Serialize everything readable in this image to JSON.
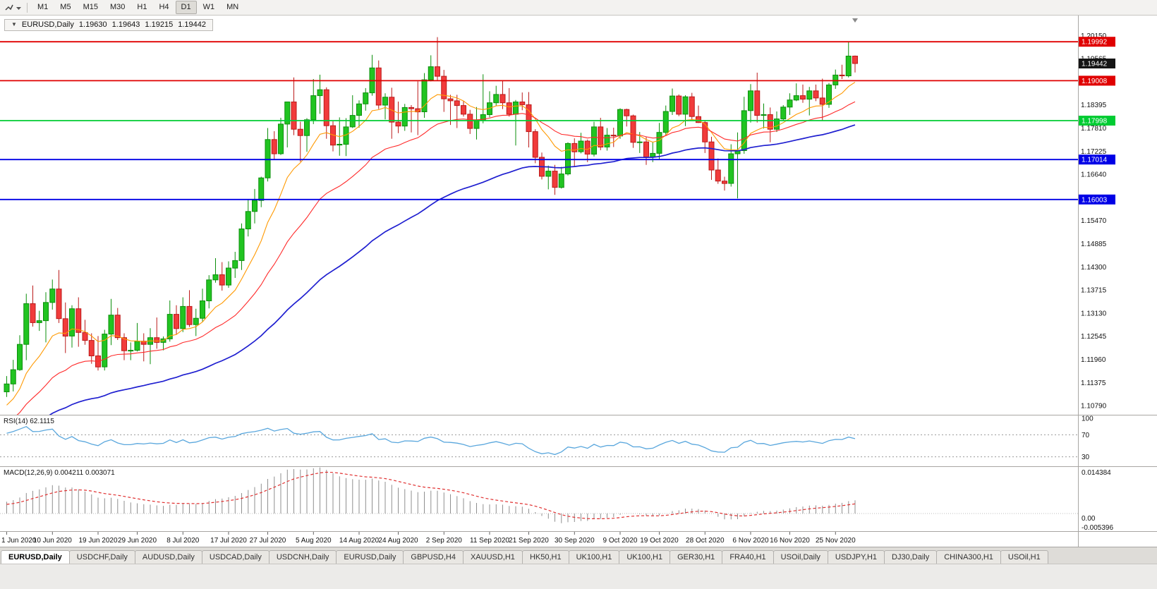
{
  "window": {
    "toolbar": {
      "timeframes": [
        "M1",
        "M5",
        "M15",
        "M30",
        "H1",
        "H4",
        "D1",
        "W1",
        "MN"
      ],
      "active": "D1"
    },
    "tabs": {
      "items": [
        "EURUSD,Daily",
        "USDCHF,Daily",
        "AUDUSD,Daily",
        "USDCAD,Daily",
        "USDCNH,Daily",
        "EURUSD,Daily",
        "GBPUSD,H4",
        "XAUUSD,H1",
        "HK50,H1",
        "UK100,H1",
        "UK100,H1",
        "GER30,H1",
        "FRA40,H1",
        "USOil,Daily",
        "USDJPY,H1",
        "DJ30,Daily",
        "CHINA300,H1",
        "USOil,H1"
      ],
      "active_index": 0
    }
  },
  "chart": {
    "symbol_period": "EURUSD,Daily",
    "ohlc": {
      "open": "1.19630",
      "high": "1.19643",
      "low": "1.19215",
      "close": "1.19442"
    }
  },
  "indicators": {
    "rsi": {
      "label": "RSI(14) 62.1115"
    },
    "macd": {
      "label": "MACD(12,26,9) 0.004211 0.003071"
    }
  },
  "chart_data": {
    "type": "candlestick",
    "symbol": "EURUSD",
    "timeframe": "Daily",
    "price_axis": {
      "max": 1.2062,
      "min": 1.1056,
      "tick_labels": [
        "1.20150",
        "1.19565",
        "1.18395",
        "1.17810",
        "1.17225",
        "1.16640",
        "1.15470",
        "1.14885",
        "1.14300",
        "1.13715",
        "1.13130",
        "1.12545",
        "1.11960",
        "1.11375",
        "1.10790"
      ]
    },
    "current_price": {
      "value": 1.19442,
      "label": "1.19442",
      "color": "#151515"
    },
    "levels": [
      {
        "price": 1.19992,
        "label": "1.19992",
        "color": "#e00000"
      },
      {
        "price": 1.19008,
        "label": "1.19008",
        "color": "#e00000"
      },
      {
        "price": 1.17998,
        "label": "1.17998",
        "color": "#00cc33"
      },
      {
        "price": 1.17014,
        "label": "1.17014",
        "color": "#0000e6"
      },
      {
        "price": 1.16003,
        "label": "1.16003",
        "color": "#0000e6"
      }
    ],
    "moving_averages": [
      {
        "period": 10,
        "method": "ema",
        "color": "#ff9900"
      },
      {
        "period": 25,
        "method": "ema",
        "color": "#ff2a2a"
      },
      {
        "period": 60,
        "method": "ema",
        "color": "#1f1fd0"
      }
    ],
    "rsi": {
      "period": 14,
      "value": 62.1115,
      "color": "#5aa7dd",
      "levels": [
        "100",
        "70",
        "30"
      ],
      "display_range": [
        14,
        104
      ]
    },
    "macd": {
      "fast": 12,
      "slow": 26,
      "signal": 9,
      "value": 0.004211,
      "signal_value": 0.003071,
      "axis_max": 0.014384,
      "axis_min": -0.005396,
      "scale_labels": {
        "top": "0.014384",
        "zero": "0.00",
        "bottom": "-0.005396"
      },
      "histogram_color": "#8f8f8f",
      "signal_color": "#e03030"
    },
    "colors": {
      "up": "#21c421",
      "up_border": "#0c8f0c",
      "down": "#f13b3b",
      "down_border": "#bb1a1a",
      "background": "#ffffff"
    },
    "date_ticks": [
      [
        0,
        "1 Jun 2020"
      ],
      [
        7,
        "10 Jun 2020"
      ],
      [
        14,
        "19 Jun 2020"
      ],
      [
        20,
        "29 Jun 2020"
      ],
      [
        27,
        "8 Jul 2020"
      ],
      [
        34,
        "17 Jul 2020"
      ],
      [
        40,
        "27 Jul 2020"
      ],
      [
        47,
        "5 Aug 2020"
      ],
      [
        54,
        "14 Aug 2020"
      ],
      [
        60,
        "24 Aug 2020"
      ],
      [
        67,
        "2 Sep 2020"
      ],
      [
        74,
        "11 Sep 2020"
      ],
      [
        80,
        "21 Sep 2020"
      ],
      [
        87,
        "30 Sep 2020"
      ],
      [
        94,
        "9 Oct 2020"
      ],
      [
        100,
        "19 Oct 2020"
      ],
      [
        107,
        "28 Oct 2020"
      ],
      [
        114,
        "6 Nov 2020"
      ],
      [
        120,
        "16 Nov 2020"
      ],
      [
        127,
        "25 Nov 2020"
      ]
    ],
    "candles": [
      [
        1.1114,
        1.1154,
        1.1101,
        1.1134
      ],
      [
        1.1134,
        1.1195,
        1.1115,
        1.117
      ],
      [
        1.117,
        1.1257,
        1.1167,
        1.1234
      ],
      [
        1.1234,
        1.1362,
        1.1194,
        1.1337
      ],
      [
        1.1337,
        1.1383,
        1.1279,
        1.1289
      ],
      [
        1.1289,
        1.1319,
        1.1268,
        1.1294
      ],
      [
        1.1294,
        1.1366,
        1.1239,
        1.134
      ],
      [
        1.134,
        1.1398,
        1.1322,
        1.1374
      ],
      [
        1.1374,
        1.1422,
        1.1288,
        1.1299
      ],
      [
        1.1299,
        1.134,
        1.1212,
        1.1255
      ],
      [
        1.1255,
        1.1333,
        1.1226,
        1.1324
      ],
      [
        1.1324,
        1.1353,
        1.1228,
        1.1264
      ],
      [
        1.1264,
        1.1296,
        1.1233,
        1.1244
      ],
      [
        1.1244,
        1.1262,
        1.1185,
        1.1205
      ],
      [
        1.1205,
        1.1255,
        1.1168,
        1.1177
      ],
      [
        1.1177,
        1.1271,
        1.1168,
        1.126
      ],
      [
        1.126,
        1.1349,
        1.1232,
        1.1308
      ],
      [
        1.1308,
        1.1326,
        1.1245,
        1.1251
      ],
      [
        1.1251,
        1.1262,
        1.1194,
        1.1218
      ],
      [
        1.1218,
        1.1239,
        1.1194,
        1.1219
      ],
      [
        1.1219,
        1.1288,
        1.1216,
        1.1242
      ],
      [
        1.1242,
        1.1262,
        1.1191,
        1.1234
      ],
      [
        1.1234,
        1.1275,
        1.1184,
        1.1251
      ],
      [
        1.1251,
        1.1302,
        1.1223,
        1.1239
      ],
      [
        1.1239,
        1.1254,
        1.1219,
        1.1248
      ],
      [
        1.1248,
        1.1345,
        1.1241,
        1.131
      ],
      [
        1.131,
        1.1333,
        1.1259,
        1.1274
      ],
      [
        1.1274,
        1.1353,
        1.1265,
        1.133
      ],
      [
        1.133,
        1.1371,
        1.1278,
        1.1284
      ],
      [
        1.1284,
        1.1324,
        1.1255,
        1.13
      ],
      [
        1.13,
        1.1375,
        1.1292,
        1.1344
      ],
      [
        1.1344,
        1.1409,
        1.1325,
        1.1397
      ],
      [
        1.1397,
        1.1452,
        1.139,
        1.141
      ],
      [
        1.141,
        1.1442,
        1.137,
        1.1384
      ],
      [
        1.1384,
        1.1444,
        1.1377,
        1.1427
      ],
      [
        1.1427,
        1.1468,
        1.1402,
        1.1446
      ],
      [
        1.1446,
        1.154,
        1.1422,
        1.1526
      ],
      [
        1.1526,
        1.1601,
        1.1507,
        1.157
      ],
      [
        1.157,
        1.1627,
        1.154,
        1.1598
      ],
      [
        1.1598,
        1.1658,
        1.1581,
        1.1655
      ],
      [
        1.1655,
        1.1781,
        1.1646,
        1.1752
      ],
      [
        1.1752,
        1.1773,
        1.17,
        1.1716
      ],
      [
        1.1716,
        1.1807,
        1.1713,
        1.1791
      ],
      [
        1.1791,
        1.1848,
        1.1732,
        1.1847
      ],
      [
        1.1847,
        1.1909,
        1.1763,
        1.1778
      ],
      [
        1.1778,
        1.1797,
        1.1696,
        1.1762
      ],
      [
        1.1762,
        1.1806,
        1.1721,
        1.1802
      ],
      [
        1.1802,
        1.1905,
        1.1791,
        1.1863
      ],
      [
        1.1863,
        1.1916,
        1.1817,
        1.1878
      ],
      [
        1.1878,
        1.1884,
        1.1754,
        1.1787
      ],
      [
        1.1787,
        1.1798,
        1.1722,
        1.1738
      ],
      [
        1.1738,
        1.1808,
        1.1711,
        1.174
      ],
      [
        1.174,
        1.1806,
        1.171,
        1.1784
      ],
      [
        1.1784,
        1.1864,
        1.1781,
        1.1813
      ],
      [
        1.1813,
        1.1851,
        1.1782,
        1.1842
      ],
      [
        1.1842,
        1.1882,
        1.1825,
        1.187
      ],
      [
        1.187,
        1.1966,
        1.1863,
        1.1933
      ],
      [
        1.1933,
        1.1952,
        1.1829,
        1.1839
      ],
      [
        1.1839,
        1.1869,
        1.1803,
        1.1859
      ],
      [
        1.1859,
        1.1883,
        1.1754,
        1.1796
      ],
      [
        1.1796,
        1.1848,
        1.1768,
        1.1786
      ],
      [
        1.1786,
        1.1842,
        1.1774,
        1.1833
      ],
      [
        1.1833,
        1.1839,
        1.177,
        1.183
      ],
      [
        1.183,
        1.1899,
        1.1763,
        1.1822
      ],
      [
        1.1822,
        1.192,
        1.1807,
        1.1903
      ],
      [
        1.1903,
        1.1965,
        1.1899,
        1.1936
      ],
      [
        1.1936,
        1.2011,
        1.1901,
        1.1912
      ],
      [
        1.1912,
        1.1928,
        1.1822,
        1.1855
      ],
      [
        1.1855,
        1.1865,
        1.1789,
        1.185
      ],
      [
        1.185,
        1.1865,
        1.1781,
        1.1838
      ],
      [
        1.1838,
        1.1849,
        1.181,
        1.1816
      ],
      [
        1.1816,
        1.1827,
        1.1766,
        1.178
      ],
      [
        1.178,
        1.1834,
        1.1752,
        1.1801
      ],
      [
        1.1801,
        1.1917,
        1.1793,
        1.1815
      ],
      [
        1.1815,
        1.1874,
        1.1808,
        1.1845
      ],
      [
        1.1845,
        1.1888,
        1.1838,
        1.1866
      ],
      [
        1.1866,
        1.19,
        1.1829,
        1.1845
      ],
      [
        1.1845,
        1.1882,
        1.181,
        1.1816
      ],
      [
        1.1816,
        1.1852,
        1.1737,
        1.1847
      ],
      [
        1.1847,
        1.1871,
        1.1826,
        1.184
      ],
      [
        1.184,
        1.1872,
        1.1732,
        1.1772
      ],
      [
        1.1772,
        1.1778,
        1.1692,
        1.1707
      ],
      [
        1.1707,
        1.1719,
        1.1651,
        1.1659
      ],
      [
        1.1659,
        1.1686,
        1.1626,
        1.1672
      ],
      [
        1.1672,
        1.1688,
        1.1612,
        1.1631
      ],
      [
        1.1631,
        1.1683,
        1.1628,
        1.1665
      ],
      [
        1.1665,
        1.1745,
        1.1661,
        1.1742
      ],
      [
        1.1742,
        1.1755,
        1.1684,
        1.1721
      ],
      [
        1.1721,
        1.1769,
        1.1717,
        1.1748
      ],
      [
        1.1748,
        1.1752,
        1.1695,
        1.1715
      ],
      [
        1.1715,
        1.1797,
        1.1709,
        1.1784
      ],
      [
        1.1784,
        1.1807,
        1.1725,
        1.1733
      ],
      [
        1.1733,
        1.1781,
        1.1724,
        1.1763
      ],
      [
        1.1763,
        1.1782,
        1.1733,
        1.1761
      ],
      [
        1.1761,
        1.1831,
        1.1754,
        1.1828
      ],
      [
        1.1828,
        1.183,
        1.1785,
        1.1812
      ],
      [
        1.1812,
        1.1815,
        1.1731,
        1.1745
      ],
      [
        1.1745,
        1.1771,
        1.1718,
        1.1746
      ],
      [
        1.1746,
        1.1758,
        1.1688,
        1.1708
      ],
      [
        1.1708,
        1.1746,
        1.1695,
        1.1717
      ],
      [
        1.1717,
        1.1794,
        1.1702,
        1.177
      ],
      [
        1.177,
        1.1838,
        1.1761,
        1.1823
      ],
      [
        1.1823,
        1.1881,
        1.1814,
        1.1862
      ],
      [
        1.1862,
        1.1866,
        1.1811,
        1.1816
      ],
      [
        1.1816,
        1.1864,
        1.1786,
        1.186
      ],
      [
        1.186,
        1.187,
        1.1803,
        1.181
      ],
      [
        1.181,
        1.1838,
        1.1794,
        1.1795
      ],
      [
        1.1795,
        1.18,
        1.1718,
        1.1746
      ],
      [
        1.1746,
        1.1759,
        1.165,
        1.1675
      ],
      [
        1.1675,
        1.1704,
        1.164,
        1.1647
      ],
      [
        1.1647,
        1.1658,
        1.1623,
        1.1641
      ],
      [
        1.1641,
        1.174,
        1.1633,
        1.1716
      ],
      [
        1.1716,
        1.177,
        1.1603,
        1.1724
      ],
      [
        1.1724,
        1.186,
        1.1716,
        1.1825
      ],
      [
        1.1825,
        1.1892,
        1.1795,
        1.1875
      ],
      [
        1.1875,
        1.1921,
        1.1795,
        1.1813
      ],
      [
        1.1813,
        1.1843,
        1.178,
        1.1815
      ],
      [
        1.1815,
        1.1833,
        1.1745,
        1.1778
      ],
      [
        1.1778,
        1.1823,
        1.1771,
        1.1804
      ],
      [
        1.1804,
        1.1839,
        1.1799,
        1.1834
      ],
      [
        1.1834,
        1.1869,
        1.1814,
        1.1852
      ],
      [
        1.1852,
        1.1894,
        1.1849,
        1.1863
      ],
      [
        1.1863,
        1.1891,
        1.1845,
        1.1854
      ],
      [
        1.1854,
        1.1885,
        1.1813,
        1.1875
      ],
      [
        1.1875,
        1.1891,
        1.1849,
        1.1857
      ],
      [
        1.1857,
        1.1906,
        1.1799,
        1.1841
      ],
      [
        1.1841,
        1.1895,
        1.1832,
        1.189
      ],
      [
        1.189,
        1.1929,
        1.188,
        1.1915
      ],
      [
        1.1915,
        1.1941,
        1.1905,
        1.1913
      ],
      [
        1.1913,
        1.1999,
        1.1909,
        1.1963
      ],
      [
        1.1963,
        1.19643,
        1.19215,
        1.19442
      ]
    ]
  }
}
